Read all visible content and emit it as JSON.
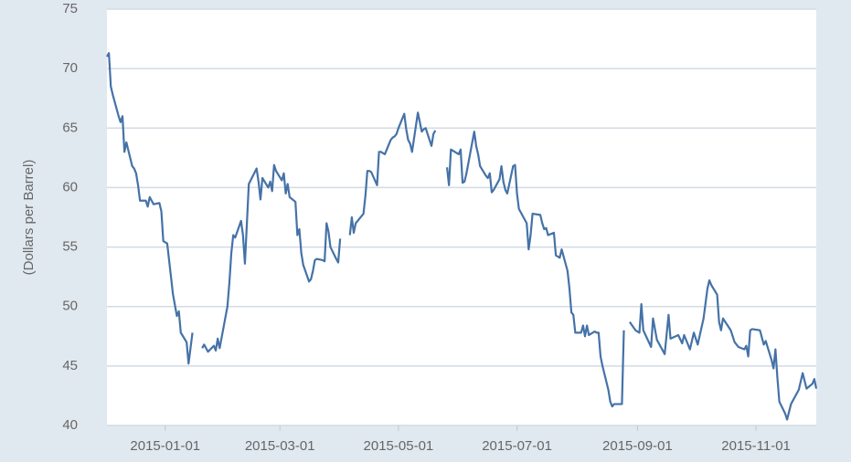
{
  "chart_data": {
    "type": "line",
    "y_label": "(Dollars per Barrel)",
    "color": "#4572a7",
    "grid": true,
    "xlim": [
      "2014-12-02",
      "2015-12-02"
    ],
    "xticks": [
      "2015-01-01",
      "2015-03-01",
      "2015-05-01",
      "2015-07-01",
      "2015-09-01",
      "2015-11-01"
    ],
    "ylim": [
      40,
      75
    ],
    "yticks": [
      40,
      45,
      50,
      55,
      60,
      65,
      70,
      75
    ],
    "x": [
      "2014-12-02",
      "2014-12-03",
      "2014-12-04",
      "2014-12-05",
      "2014-12-08",
      "2014-12-09",
      "2014-12-10",
      "2014-12-11",
      "2014-12-12",
      "2014-12-15",
      "2014-12-16",
      "2014-12-17",
      "2014-12-18",
      "2014-12-19",
      "2014-12-22",
      "2014-12-23",
      "2014-12-24",
      "2014-12-26",
      "2014-12-29",
      "2014-12-30",
      "2014-12-31",
      "2015-01-02",
      "2015-01-05",
      "2015-01-07",
      "2015-01-08",
      "2015-01-09",
      "2015-01-12",
      "2015-01-13",
      "2015-01-14",
      "2015-01-15",
      "2015-01-16",
      "2015-01-20",
      "2015-01-21",
      "2015-01-23",
      "2015-01-26",
      "2015-01-27",
      "2015-01-28",
      "2015-01-29",
      "2015-02-02",
      "2015-02-03",
      "2015-02-04",
      "2015-02-05",
      "2015-02-06",
      "2015-02-09",
      "2015-02-10",
      "2015-02-11",
      "2015-02-13",
      "2015-02-17",
      "2015-02-18",
      "2015-02-19",
      "2015-02-20",
      "2015-02-23",
      "2015-02-24",
      "2015-02-25",
      "2015-02-26",
      "2015-02-27",
      "2015-03-02",
      "2015-03-03",
      "2015-03-04",
      "2015-03-05",
      "2015-03-06",
      "2015-03-09",
      "2015-03-10",
      "2015-03-11",
      "2015-03-12",
      "2015-03-13",
      "2015-03-16",
      "2015-03-17",
      "2015-03-18",
      "2015-03-19",
      "2015-03-20",
      "2015-03-23",
      "2015-03-24",
      "2015-03-25",
      "2015-03-26",
      "2015-03-27",
      "2015-03-30",
      "2015-03-31",
      "2015-04-01",
      "2015-04-03",
      "2015-04-06",
      "2015-04-07",
      "2015-04-08",
      "2015-04-09",
      "2015-04-10",
      "2015-04-13",
      "2015-04-14",
      "2015-04-15",
      "2015-04-16",
      "2015-04-17",
      "2015-04-20",
      "2015-04-21",
      "2015-04-22",
      "2015-04-23",
      "2015-04-24",
      "2015-04-27",
      "2015-04-28",
      "2015-04-29",
      "2015-04-30",
      "2015-05-01",
      "2015-05-04",
      "2015-05-05",
      "2015-05-06",
      "2015-05-07",
      "2015-05-08",
      "2015-05-11",
      "2015-05-12",
      "2015-05-13",
      "2015-05-14",
      "2015-05-15",
      "2015-05-18",
      "2015-05-19",
      "2015-05-20",
      "2015-05-22",
      "2015-05-26",
      "2015-05-27",
      "2015-05-28",
      "2015-06-01",
      "2015-06-02",
      "2015-06-03",
      "2015-06-04",
      "2015-06-05",
      "2015-06-09",
      "2015-06-10",
      "2015-06-11",
      "2015-06-12",
      "2015-06-15",
      "2015-06-16",
      "2015-06-17",
      "2015-06-18",
      "2015-06-19",
      "2015-06-22",
      "2015-06-23",
      "2015-06-24",
      "2015-06-25",
      "2015-06-26",
      "2015-06-29",
      "2015-06-30",
      "2015-07-01",
      "2015-07-02",
      "2015-07-06",
      "2015-07-07",
      "2015-07-08",
      "2015-07-09",
      "2015-07-13",
      "2015-07-14",
      "2015-07-15",
      "2015-07-16",
      "2015-07-17",
      "2015-07-20",
      "2015-07-21",
      "2015-07-22",
      "2015-07-23",
      "2015-07-24",
      "2015-07-27",
      "2015-07-28",
      "2015-07-29",
      "2015-07-30",
      "2015-07-31",
      "2015-08-03",
      "2015-08-04",
      "2015-08-05",
      "2015-08-06",
      "2015-08-07",
      "2015-08-10",
      "2015-08-11",
      "2015-08-12",
      "2015-08-13",
      "2015-08-14",
      "2015-08-17",
      "2015-08-18",
      "2015-08-19",
      "2015-08-20",
      "2015-08-21",
      "2015-08-24",
      "2015-08-25",
      "2015-08-27",
      "2015-08-28",
      "2015-08-31",
      "2015-09-02",
      "2015-09-03",
      "2015-09-04",
      "2015-09-08",
      "2015-09-09",
      "2015-09-11",
      "2015-09-15",
      "2015-09-17",
      "2015-09-18",
      "2015-09-22",
      "2015-09-24",
      "2015-09-25",
      "2015-09-28",
      "2015-09-30",
      "2015-10-02",
      "2015-10-05",
      "2015-10-07",
      "2015-10-08",
      "2015-10-09",
      "2015-10-12",
      "2015-10-13",
      "2015-10-14",
      "2015-10-15",
      "2015-10-19",
      "2015-10-21",
      "2015-10-23",
      "2015-10-26",
      "2015-10-27",
      "2015-10-28",
      "2015-10-29",
      "2015-10-30",
      "2015-11-03",
      "2015-11-05",
      "2015-11-06",
      "2015-11-09",
      "2015-11-10",
      "2015-11-11",
      "2015-11-12",
      "2015-11-13",
      "2015-11-16",
      "2015-11-17",
      "2015-11-19",
      "2015-11-23",
      "2015-11-25",
      "2015-11-27",
      "2015-11-30",
      "2015-12-01",
      "2015-12-02"
    ],
    "values": [
      71.0,
      71.3,
      68.5,
      67.8,
      66.0,
      65.5,
      66.0,
      63.0,
      63.8,
      61.8,
      61.6,
      61.2,
      60.2,
      58.9,
      58.9,
      58.4,
      59.2,
      58.6,
      58.7,
      58.0,
      55.5,
      55.3,
      51.0,
      49.2,
      49.6,
      47.8,
      47.0,
      45.2,
      46.5,
      47.8,
      null,
      46.5,
      46.8,
      46.2,
      46.7,
      46.3,
      47.3,
      46.5,
      50.0,
      52.0,
      54.5,
      56.0,
      55.8,
      57.2,
      56.0,
      53.6,
      60.3,
      61.6,
      60.5,
      59.0,
      60.8,
      60.0,
      60.5,
      59.7,
      61.9,
      61.4,
      60.6,
      61.2,
      59.5,
      60.3,
      59.2,
      58.8,
      56.0,
      56.5,
      54.5,
      53.5,
      52.1,
      52.3,
      53.0,
      53.9,
      54.0,
      53.9,
      53.8,
      57.0,
      56.3,
      55.0,
      54.0,
      53.7,
      55.7,
      null,
      56.0,
      57.5,
      56.2,
      57.0,
      57.2,
      57.8,
      59.3,
      61.4,
      61.4,
      61.3,
      60.2,
      63.0,
      63.0,
      62.9,
      62.8,
      64.0,
      64.2,
      64.3,
      64.5,
      65.0,
      66.2,
      64.9,
      64.0,
      63.7,
      63.0,
      66.3,
      65.5,
      64.7,
      64.9,
      65.0,
      63.5,
      64.5,
      64.8,
      null,
      61.7,
      60.2,
      63.2,
      62.8,
      63.2,
      60.4,
      60.5,
      61.2,
      64.7,
      63.5,
      62.8,
      61.8,
      61.0,
      60.8,
      61.2,
      59.6,
      59.8,
      60.7,
      61.8,
      60.5,
      59.8,
      59.5,
      61.8,
      61.9,
      59.5,
      58.2,
      57.0,
      54.8,
      56.0,
      57.8,
      57.7,
      57.0,
      56.5,
      56.6,
      56.0,
      56.2,
      54.3,
      54.2,
      54.1,
      54.8,
      53.0,
      51.5,
      49.5,
      49.3,
      47.8,
      47.8,
      48.4,
      47.5,
      48.4,
      47.6,
      47.9,
      47.8,
      47.8,
      45.8,
      45.0,
      43.0,
      42.0,
      41.6,
      41.8,
      41.8,
      41.8,
      48.0,
      null,
      48.7,
      48.0,
      47.8,
      50.2,
      48.0,
      46.6,
      49.0,
      47.2,
      46.0,
      49.3,
      47.3,
      47.6,
      46.9,
      47.6,
      46.4,
      47.8,
      46.8,
      49.0,
      51.5,
      52.2,
      51.8,
      51.0,
      48.7,
      48.0,
      49.0,
      48.0,
      47.0,
      46.6,
      46.4,
      46.7,
      45.8,
      48.0,
      48.1,
      48.0,
      46.8,
      47.1,
      45.5,
      44.8,
      46.4,
      44.0,
      42.0,
      41.0,
      40.5,
      41.8,
      43.0,
      44.4,
      43.1,
      43.5,
      43.9,
      43.1
    ]
  }
}
